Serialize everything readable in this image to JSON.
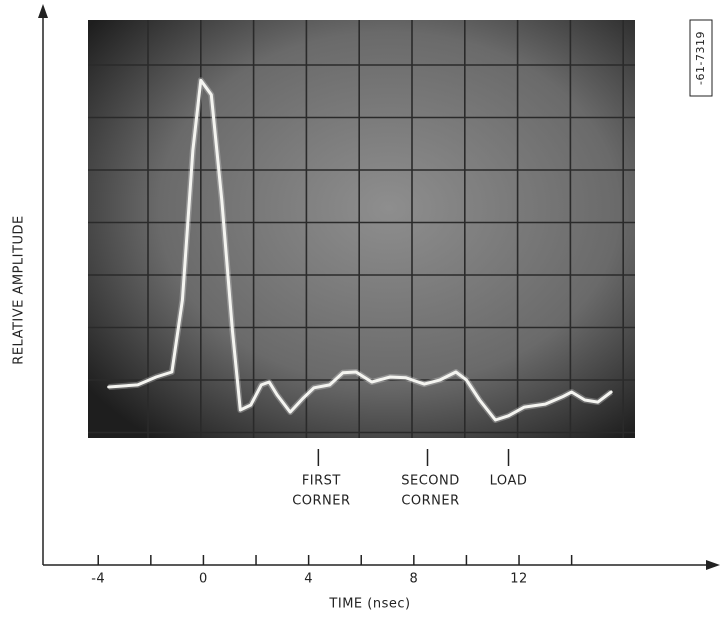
{
  "chart_data": {
    "type": "line",
    "x_label": "TIME (nsec)",
    "y_label": "RELATIVE AMPLITUDE",
    "figure_code": "-61-7319",
    "xlim": [
      -6.1,
      18.9
    ],
    "ylim": [
      0,
      10
    ],
    "xticks": [
      -4,
      0,
      4,
      8,
      12
    ],
    "minor_xticks": [
      -2,
      2,
      6,
      10,
      14
    ],
    "color": "#f4f4f0",
    "x": [
      -3.6,
      -2.5,
      -1.8,
      -1.2,
      -0.8,
      -0.4,
      -0.1,
      0.3,
      0.7,
      1.1,
      1.4,
      1.8,
      2.2,
      2.5,
      2.8,
      3.3,
      3.8,
      4.2,
      4.8,
      5.3,
      5.8,
      6.4,
      7.1,
      7.7,
      8.4,
      9.0,
      9.6,
      10.0,
      10.5,
      11.1,
      11.6,
      12.2,
      13.0,
      13.7,
      14.0,
      14.5,
      15.0,
      15.5
    ],
    "values": [
      1.22,
      1.27,
      1.46,
      1.58,
      3.3,
      6.89,
      8.56,
      8.21,
      5.69,
      2.58,
      0.67,
      0.79,
      1.27,
      1.34,
      1.03,
      0.62,
      0.96,
      1.2,
      1.27,
      1.56,
      1.58,
      1.34,
      1.46,
      1.44,
      1.29,
      1.39,
      1.58,
      1.39,
      0.91,
      0.43,
      0.53,
      0.74,
      0.81,
      1.0,
      1.1,
      0.91,
      0.86,
      1.1
    ],
    "annotations": [
      {
        "x": 4.37,
        "lines": [
          "FIRST",
          "CORNER"
        ]
      },
      {
        "x": 8.52,
        "lines": [
          "SECOND",
          "CORNER"
        ]
      },
      {
        "x": 11.6,
        "lines": [
          "LOAD"
        ]
      }
    ]
  }
}
